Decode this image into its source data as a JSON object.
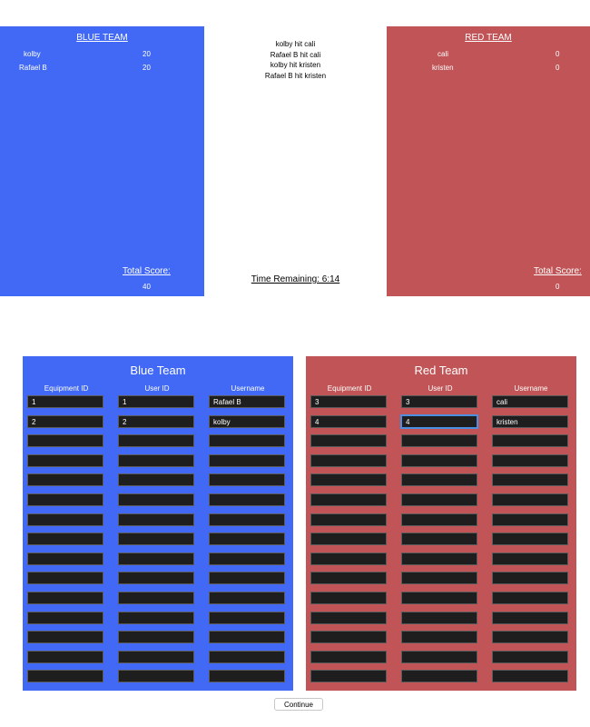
{
  "scoreboard": {
    "blue": {
      "title": "BLUE TEAM",
      "players": [
        {
          "name": "kolby",
          "score": "20"
        },
        {
          "name": "Rafael B",
          "score": "20"
        }
      ],
      "total_label": "Total Score:",
      "total_value": "40",
      "color": "#4169f5"
    },
    "red": {
      "title": "RED TEAM",
      "players": [
        {
          "name": "cali",
          "score": "0"
        },
        {
          "name": "kristen",
          "score": "0"
        }
      ],
      "total_label": "Total Score:",
      "total_value": "0",
      "color": "#c05456"
    },
    "events": [
      "kolby hit cali",
      "Rafael B hit cali",
      "kolby hit kristen",
      "Rafael B hit kristen"
    ],
    "timer": "Time Remaining: 6:14"
  },
  "entry": {
    "columns": [
      "Equipment ID",
      "User ID",
      "Username"
    ],
    "blue": {
      "title": "Blue Team",
      "rows": [
        [
          "1",
          "1",
          "Rafael B"
        ],
        [
          "2",
          "2",
          "kolby"
        ],
        [
          "",
          "",
          ""
        ],
        [
          "",
          "",
          ""
        ],
        [
          "",
          "",
          ""
        ],
        [
          "",
          "",
          ""
        ],
        [
          "",
          "",
          ""
        ],
        [
          "",
          "",
          ""
        ],
        [
          "",
          "",
          ""
        ],
        [
          "",
          "",
          ""
        ],
        [
          "",
          "",
          ""
        ],
        [
          "",
          "",
          ""
        ],
        [
          "",
          "",
          ""
        ],
        [
          "",
          "",
          ""
        ],
        [
          "",
          "",
          ""
        ]
      ]
    },
    "red": {
      "title": "Red Team",
      "rows": [
        [
          "3",
          "3",
          "cali"
        ],
        [
          "4",
          "4",
          "kristen"
        ],
        [
          "",
          "",
          ""
        ],
        [
          "",
          "",
          ""
        ],
        [
          "",
          "",
          ""
        ],
        [
          "",
          "",
          ""
        ],
        [
          "",
          "",
          ""
        ],
        [
          "",
          "",
          ""
        ],
        [
          "",
          "",
          ""
        ],
        [
          "",
          "",
          ""
        ],
        [
          "",
          "",
          ""
        ],
        [
          "",
          "",
          ""
        ],
        [
          "",
          "",
          ""
        ],
        [
          "",
          "",
          ""
        ],
        [
          "",
          "",
          ""
        ]
      ]
    },
    "focused_cell": "red.1.1"
  },
  "continue_label": "Continue"
}
